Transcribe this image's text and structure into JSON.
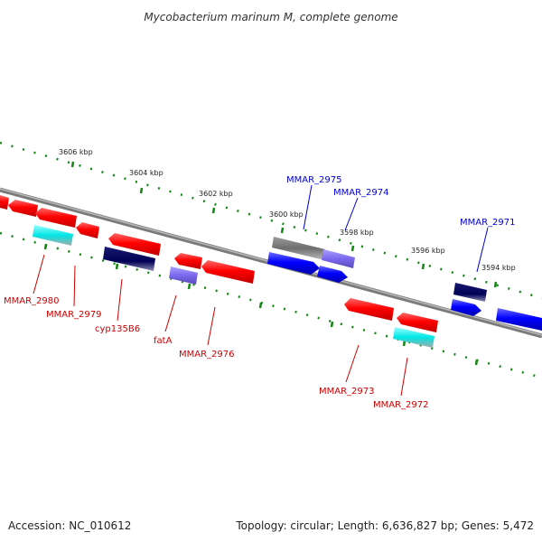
{
  "title": "Mycobacterium marinum M, complete genome",
  "accession": "Accession: NC_010612",
  "topology": "Topology: circular; Length: 6,636,827 bp; Genes: 5,472",
  "colors": {
    "reverse_label": "#cc0000",
    "forward_label": "#0000cc",
    "backbone": "#888888",
    "tick": "#118811"
  },
  "ticks": [
    {
      "label": "3606 kbp"
    },
    {
      "label": "3604 kbp"
    },
    {
      "label": "3602 kbp"
    },
    {
      "label": "3600 kbp"
    },
    {
      "label": "3598 kbp"
    },
    {
      "label": "3596 kbp"
    },
    {
      "label": "3594 kbp"
    }
  ],
  "gene_labels": [
    {
      "name": "MMAR_2975",
      "strand": "forward"
    },
    {
      "name": "MMAR_2974",
      "strand": "forward"
    },
    {
      "name": "MMAR_2971",
      "strand": "forward"
    },
    {
      "name": "MMAR_2980",
      "strand": "reverse"
    },
    {
      "name": "MMAR_2979",
      "strand": "reverse"
    },
    {
      "name": "cyp135B6",
      "strand": "reverse"
    },
    {
      "name": "fatA",
      "strand": "reverse"
    },
    {
      "name": "MMAR_2976",
      "strand": "reverse"
    },
    {
      "name": "MMAR_2973",
      "strand": "reverse"
    },
    {
      "name": "MMAR_2972",
      "strand": "reverse"
    }
  ]
}
